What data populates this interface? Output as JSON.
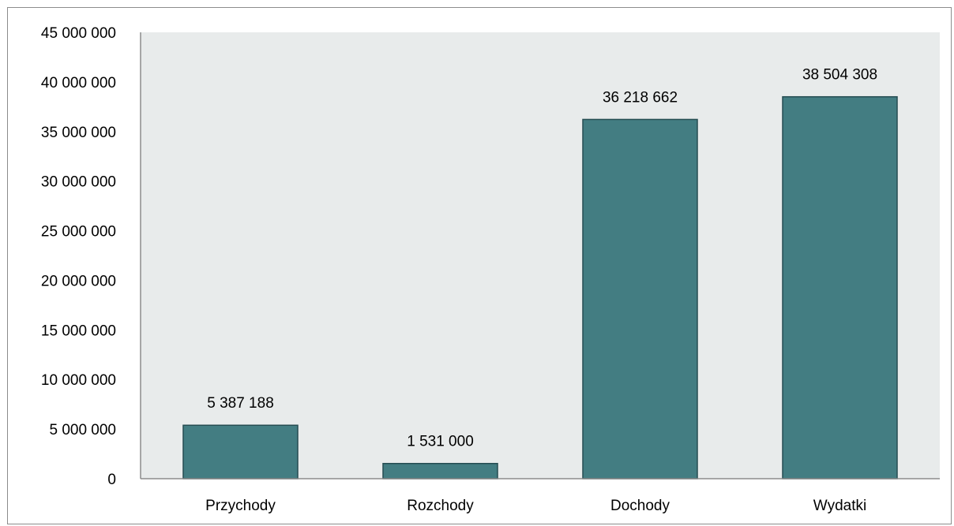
{
  "chart_data": {
    "type": "bar",
    "title": "",
    "xlabel": "",
    "ylabel": "",
    "categories": [
      "Przychody",
      "Rozchody",
      "Dochody",
      "Wydatki"
    ],
    "values": [
      5387188,
      1531000,
      36218662,
      38504308
    ],
    "data_labels": [
      "5 387 188",
      "1 531 000",
      "36 218 662",
      "38 504 308"
    ],
    "ylim": [
      0,
      45000000
    ],
    "y_ticks": [
      0,
      5000000,
      10000000,
      15000000,
      20000000,
      25000000,
      30000000,
      35000000,
      40000000,
      45000000
    ],
    "y_tick_labels": [
      "0",
      "5 000 000",
      "10 000 000",
      "15 000 000",
      "20 000 000",
      "25 000 000",
      "30 000 000",
      "35 000 000",
      "40 000 000",
      "45 000 000"
    ],
    "grid": false,
    "legend": "none",
    "colors": {
      "bar_fill": "#437d82",
      "bar_stroke": "#264d52",
      "plot_background": "#e8ebeb",
      "axis": "#8c8c8c"
    }
  }
}
